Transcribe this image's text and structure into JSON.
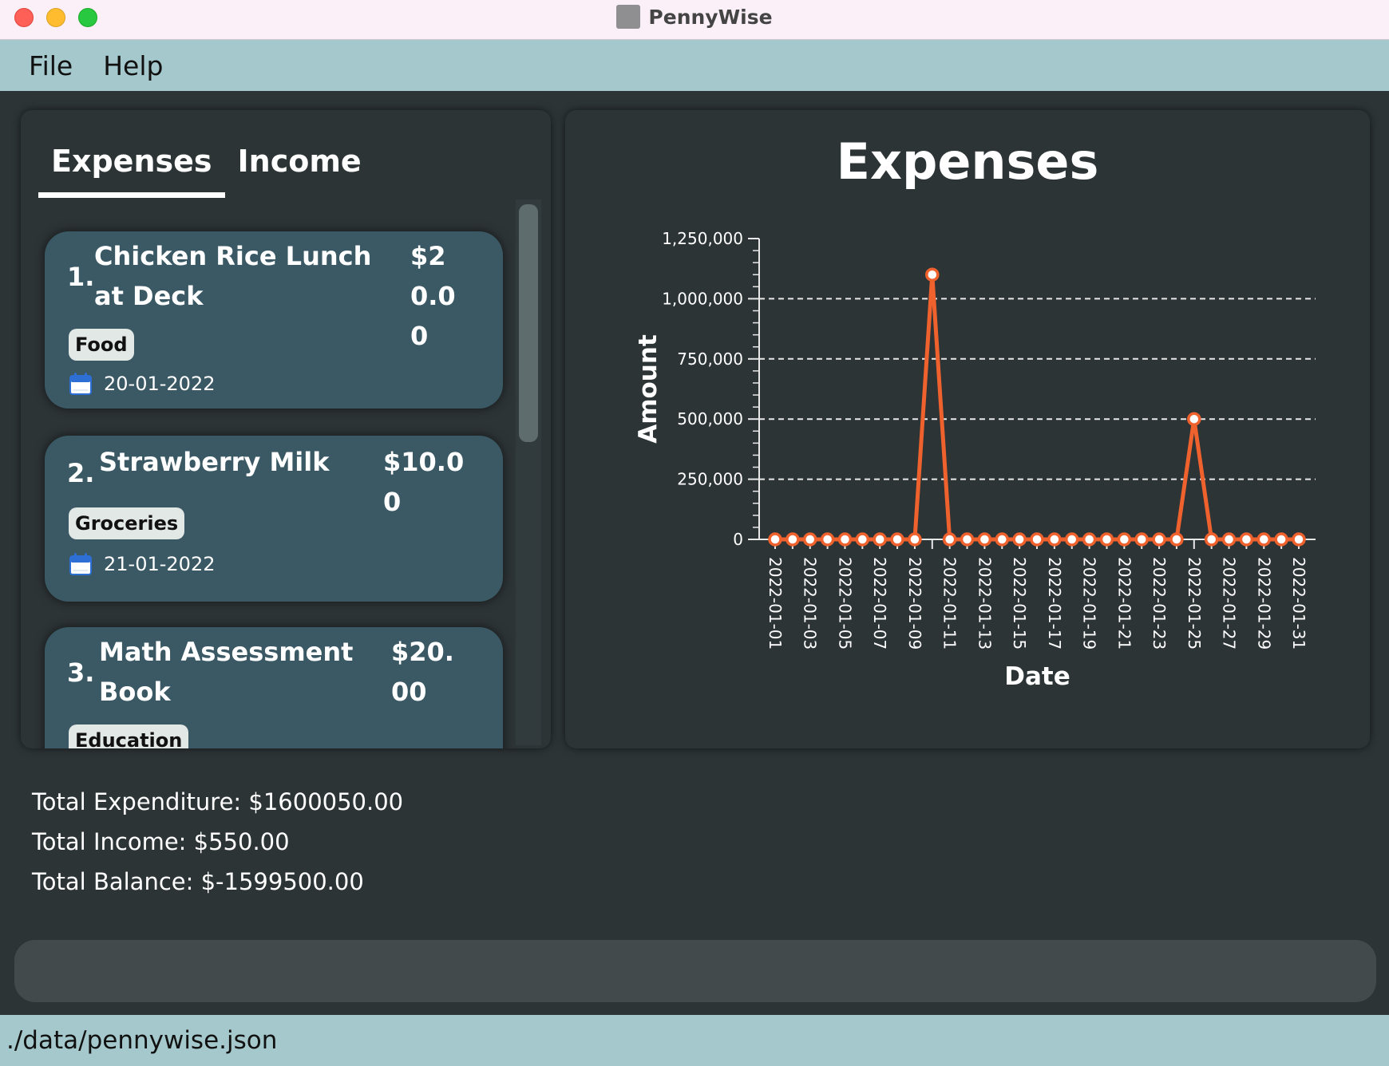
{
  "window": {
    "title": "PennyWise"
  },
  "menu": {
    "file": "File",
    "help": "Help"
  },
  "tabs": {
    "expenses": "Expenses",
    "income": "Income"
  },
  "expenses": [
    {
      "index": "1.",
      "description": "Chicken Rice Lunch at Deck",
      "amount": "$20.00",
      "tag": "Food",
      "date": "20-01-2022"
    },
    {
      "index": "2.",
      "description": "Strawberry Milk",
      "amount": "$10.00",
      "tag": "Groceries",
      "date": "21-01-2022"
    },
    {
      "index": "3.",
      "description": "Math Assessment Book",
      "amount": "$20.00",
      "tag": "Education",
      "date": ""
    }
  ],
  "chart_data": {
    "type": "line",
    "title": "Expenses",
    "xlabel": "Date",
    "ylabel": "Amount",
    "ylim": [
      0,
      1250000
    ],
    "y_ticks": [
      "0",
      "250,000",
      "500,000",
      "750,000",
      "1,000,000",
      "1,250,000"
    ],
    "grid": "horizontal dashed",
    "x": [
      "2022-01-01",
      "2022-01-02",
      "2022-01-03",
      "2022-01-04",
      "2022-01-05",
      "2022-01-06",
      "2022-01-07",
      "2022-01-08",
      "2022-01-09",
      "2022-01-10",
      "2022-01-11",
      "2022-01-12",
      "2022-01-13",
      "2022-01-14",
      "2022-01-15",
      "2022-01-16",
      "2022-01-17",
      "2022-01-18",
      "2022-01-19",
      "2022-01-20",
      "2022-01-21",
      "2022-01-22",
      "2022-01-23",
      "2022-01-24",
      "2022-01-25",
      "2022-01-26",
      "2022-01-27",
      "2022-01-28",
      "2022-01-29",
      "2022-01-30",
      "2022-01-31"
    ],
    "x_tick_labels": [
      "2022-01-01",
      "2022-01-03",
      "2022-01-05",
      "2022-01-07",
      "2022-01-09",
      "2022-01-11",
      "2022-01-13",
      "2022-01-15",
      "2022-01-17",
      "2022-01-19",
      "2022-01-21",
      "2022-01-23",
      "2022-01-25",
      "2022-01-27",
      "2022-01-29",
      "2022-01-31"
    ],
    "series": [
      {
        "name": "Expenses",
        "color": "#f0622d",
        "values": [
          0,
          0,
          0,
          0,
          0,
          0,
          0,
          0,
          0,
          1100000,
          0,
          0,
          0,
          0,
          0,
          0,
          0,
          0,
          0,
          20,
          10,
          0,
          0,
          0,
          500000,
          0,
          0,
          0,
          0,
          0,
          0
        ]
      }
    ]
  },
  "totals": {
    "expenditure": "Total Expenditure: $1600050.00",
    "income": "Total Income: $550.00",
    "balance": "Total Balance: $-1599500.00"
  },
  "command": {
    "value": ""
  },
  "status": {
    "path": "./data/pennywise.json"
  },
  "colors": {
    "accent": "#f0622d",
    "menubar": "#a4c8cb",
    "card": "#3a5964",
    "panel": "#2d3436"
  }
}
